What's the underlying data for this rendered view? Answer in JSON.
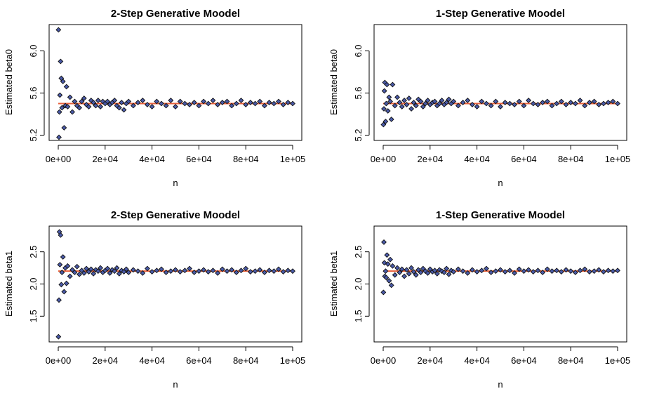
{
  "chart_data": [
    {
      "type": "scatter",
      "title": "2-Step Generative Moodel",
      "xlabel": "n",
      "ylabel": "Estimated beta0",
      "xlim": [
        0,
        100000
      ],
      "ylim": [
        5.15,
        6.25
      ],
      "x_ticks": [
        0,
        20000,
        40000,
        60000,
        80000,
        100000
      ],
      "x_tick_labels": [
        "0e+00",
        "2e+04",
        "4e+04",
        "6e+04",
        "8e+04",
        "1e+05"
      ],
      "y_ticks": [
        5.2,
        5.6,
        6.0
      ],
      "y_tick_labels": [
        "5.2",
        "5.6",
        "6.0"
      ],
      "reference_value": 5.5,
      "series": [
        {
          "x": [
            100,
            300,
            500,
            700,
            1000,
            1300,
            1600,
            2000,
            2500,
            3000,
            3500,
            4000,
            5000,
            6000,
            7000,
            8000,
            9000,
            10000,
            11000,
            12000,
            13000,
            14000,
            15000,
            16000,
            17000,
            18000,
            19000,
            20000,
            21000,
            22000,
            23000,
            24000,
            25000,
            26000,
            27000,
            28000,
            29000,
            30000,
            32000,
            34000,
            36000,
            38000,
            40000,
            42000,
            44000,
            46000,
            48000,
            50000,
            52000,
            54000,
            56000,
            58000,
            60000,
            62000,
            64000,
            66000,
            68000,
            70000,
            72000,
            74000,
            76000,
            78000,
            80000,
            82000,
            84000,
            86000,
            88000,
            90000,
            92000,
            94000,
            96000,
            98000,
            100000
          ],
          "values": [
            6.2,
            5.18,
            5.42,
            5.58,
            5.9,
            5.74,
            5.46,
            5.71,
            5.27,
            5.48,
            5.66,
            5.47,
            5.56,
            5.42,
            5.52,
            5.48,
            5.46,
            5.52,
            5.55,
            5.49,
            5.47,
            5.53,
            5.51,
            5.48,
            5.53,
            5.47,
            5.52,
            5.5,
            5.52,
            5.49,
            5.51,
            5.53,
            5.48,
            5.46,
            5.51,
            5.44,
            5.5,
            5.52,
            5.48,
            5.51,
            5.53,
            5.49,
            5.47,
            5.52,
            5.5,
            5.48,
            5.53,
            5.47,
            5.52,
            5.5,
            5.49,
            5.51,
            5.48,
            5.52,
            5.5,
            5.53,
            5.49,
            5.51,
            5.52,
            5.48,
            5.5,
            5.53,
            5.49,
            5.51,
            5.5,
            5.52,
            5.48,
            5.51,
            5.5,
            5.52,
            5.49,
            5.51,
            5.5
          ]
        }
      ]
    },
    {
      "type": "scatter",
      "title": "1-Step Generative Moodel",
      "xlabel": "n",
      "ylabel": "Estimated beta0",
      "xlim": [
        0,
        100000
      ],
      "ylim": [
        5.15,
        6.25
      ],
      "x_ticks": [
        0,
        20000,
        40000,
        60000,
        80000,
        100000
      ],
      "x_tick_labels": [
        "0e+00",
        "2e+04",
        "4e+04",
        "6e+04",
        "8e+04",
        "1e+05"
      ],
      "y_ticks": [
        5.2,
        5.6,
        6.0
      ],
      "y_tick_labels": [
        "5.2",
        "5.6",
        "6.0"
      ],
      "reference_value": 5.5,
      "series": [
        {
          "x": [
            100,
            300,
            500,
            700,
            1000,
            1300,
            1600,
            2000,
            2500,
            3000,
            3500,
            4000,
            5000,
            6000,
            7000,
            8000,
            9000,
            10000,
            11000,
            12000,
            13000,
            14000,
            15000,
            16000,
            17000,
            18000,
            19000,
            20000,
            21000,
            22000,
            23000,
            24000,
            25000,
            26000,
            27000,
            28000,
            29000,
            30000,
            32000,
            34000,
            36000,
            38000,
            40000,
            42000,
            44000,
            46000,
            48000,
            50000,
            52000,
            54000,
            56000,
            58000,
            60000,
            62000,
            64000,
            66000,
            68000,
            70000,
            72000,
            74000,
            76000,
            78000,
            80000,
            82000,
            84000,
            86000,
            88000,
            90000,
            92000,
            94000,
            96000,
            98000,
            100000
          ],
          "values": [
            5.3,
            5.45,
            5.62,
            5.7,
            5.33,
            5.5,
            5.68,
            5.43,
            5.56,
            5.52,
            5.35,
            5.68,
            5.48,
            5.56,
            5.51,
            5.47,
            5.53,
            5.49,
            5.55,
            5.45,
            5.51,
            5.48,
            5.54,
            5.52,
            5.47,
            5.5,
            5.53,
            5.49,
            5.51,
            5.52,
            5.48,
            5.5,
            5.53,
            5.49,
            5.51,
            5.54,
            5.5,
            5.52,
            5.48,
            5.51,
            5.53,
            5.49,
            5.47,
            5.52,
            5.5,
            5.48,
            5.52,
            5.47,
            5.51,
            5.5,
            5.49,
            5.52,
            5.48,
            5.53,
            5.5,
            5.49,
            5.51,
            5.52,
            5.48,
            5.5,
            5.52,
            5.49,
            5.51,
            5.5,
            5.53,
            5.48,
            5.51,
            5.52,
            5.49,
            5.5,
            5.51,
            5.52,
            5.5
          ]
        }
      ]
    },
    {
      "type": "scatter",
      "title": "2-Step Generative Moodel",
      "xlabel": "n",
      "ylabel": "Estimated beta1",
      "xlim": [
        0,
        100000
      ],
      "ylim": [
        1.1,
        2.9
      ],
      "x_ticks": [
        0,
        20000,
        40000,
        60000,
        80000,
        100000
      ],
      "x_tick_labels": [
        "0e+00",
        "2e+04",
        "4e+04",
        "6e+04",
        "8e+04",
        "1e+05"
      ],
      "y_ticks": [
        1.5,
        2.0,
        2.5
      ],
      "y_tick_labels": [
        "1.5",
        "2.0",
        "2.5"
      ],
      "reference_value": 2.2,
      "series": [
        {
          "x": [
            100,
            300,
            500,
            700,
            1000,
            1300,
            1600,
            2000,
            2500,
            3000,
            3500,
            4000,
            5000,
            6000,
            7000,
            8000,
            9000,
            10000,
            11000,
            12000,
            13000,
            14000,
            15000,
            16000,
            17000,
            18000,
            19000,
            20000,
            21000,
            22000,
            23000,
            24000,
            25000,
            26000,
            27000,
            28000,
            29000,
            30000,
            32000,
            34000,
            36000,
            38000,
            40000,
            42000,
            44000,
            46000,
            48000,
            50000,
            52000,
            54000,
            56000,
            58000,
            60000,
            62000,
            64000,
            66000,
            68000,
            70000,
            72000,
            74000,
            76000,
            78000,
            80000,
            82000,
            84000,
            86000,
            88000,
            90000,
            92000,
            94000,
            96000,
            98000,
            100000
          ],
          "values": [
            1.18,
            1.75,
            2.81,
            2.3,
            2.76,
            1.99,
            2.18,
            2.42,
            1.88,
            2.25,
            2.01,
            2.28,
            2.12,
            2.22,
            2.18,
            2.27,
            2.15,
            2.21,
            2.17,
            2.24,
            2.19,
            2.23,
            2.16,
            2.22,
            2.2,
            2.25,
            2.18,
            2.21,
            2.24,
            2.17,
            2.22,
            2.2,
            2.25,
            2.16,
            2.21,
            2.19,
            2.23,
            2.18,
            2.22,
            2.2,
            2.17,
            2.24,
            2.19,
            2.21,
            2.23,
            2.18,
            2.2,
            2.22,
            2.19,
            2.21,
            2.24,
            2.18,
            2.2,
            2.22,
            2.19,
            2.21,
            2.17,
            2.23,
            2.2,
            2.22,
            2.18,
            2.21,
            2.24,
            2.19,
            2.2,
            2.22,
            2.18,
            2.21,
            2.2,
            2.23,
            2.19,
            2.21,
            2.2
          ]
        }
      ]
    },
    {
      "type": "scatter",
      "title": "1-Step Generative Moodel",
      "xlabel": "n",
      "ylabel": "Estimated beta1",
      "xlim": [
        0,
        100000
      ],
      "ylim": [
        1.1,
        2.9
      ],
      "x_ticks": [
        0,
        20000,
        40000,
        60000,
        80000,
        100000
      ],
      "x_tick_labels": [
        "0e+00",
        "2e+04",
        "4e+04",
        "6e+04",
        "8e+04",
        "1e+05"
      ],
      "y_ticks": [
        1.5,
        2.0,
        2.5
      ],
      "y_tick_labels": [
        "1.5",
        "2.0",
        "2.5"
      ],
      "reference_value": 2.2,
      "series": [
        {
          "x": [
            100,
            300,
            500,
            700,
            1000,
            1300,
            1600,
            2000,
            2500,
            3000,
            3500,
            4000,
            5000,
            6000,
            7000,
            8000,
            9000,
            10000,
            11000,
            12000,
            13000,
            14000,
            15000,
            16000,
            17000,
            18000,
            19000,
            20000,
            21000,
            22000,
            23000,
            24000,
            25000,
            26000,
            27000,
            28000,
            29000,
            30000,
            32000,
            34000,
            36000,
            38000,
            40000,
            42000,
            44000,
            46000,
            48000,
            50000,
            52000,
            54000,
            56000,
            58000,
            60000,
            62000,
            64000,
            66000,
            68000,
            70000,
            72000,
            74000,
            76000,
            78000,
            80000,
            82000,
            84000,
            86000,
            88000,
            90000,
            92000,
            94000,
            96000,
            98000,
            100000
          ],
          "values": [
            1.87,
            2.65,
            2.33,
            2.12,
            2.2,
            2.1,
            2.45,
            2.31,
            2.05,
            2.38,
            1.98,
            2.28,
            2.14,
            2.25,
            2.18,
            2.23,
            2.12,
            2.22,
            2.16,
            2.25,
            2.19,
            2.14,
            2.22,
            2.18,
            2.24,
            2.2,
            2.17,
            2.23,
            2.19,
            2.21,
            2.16,
            2.22,
            2.2,
            2.18,
            2.24,
            2.15,
            2.21,
            2.19,
            2.23,
            2.2,
            2.17,
            2.22,
            2.19,
            2.21,
            2.24,
            2.18,
            2.2,
            2.22,
            2.19,
            2.21,
            2.17,
            2.23,
            2.2,
            2.22,
            2.19,
            2.21,
            2.18,
            2.23,
            2.2,
            2.21,
            2.19,
            2.22,
            2.2,
            2.18,
            2.21,
            2.23,
            2.19,
            2.2,
            2.22,
            2.19,
            2.21,
            2.2,
            2.21
          ]
        }
      ]
    }
  ]
}
